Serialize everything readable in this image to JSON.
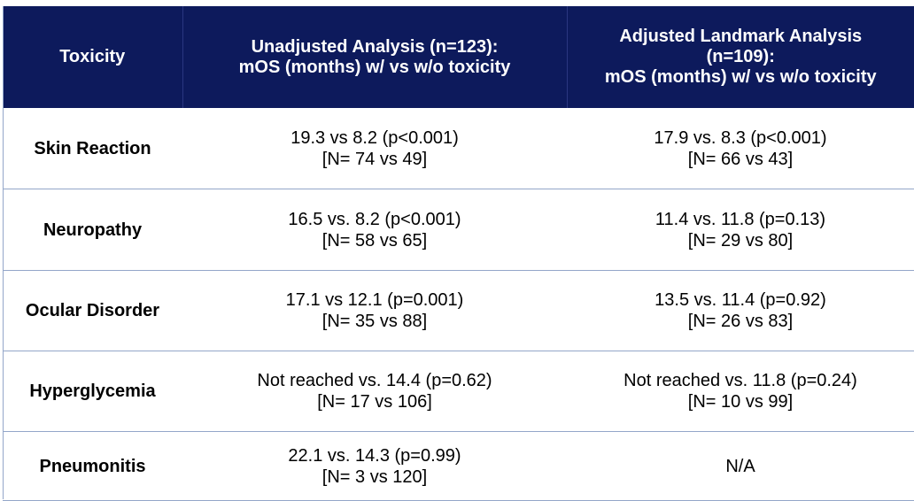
{
  "header": {
    "col1": "Toxicity",
    "col2_line1": "Unadjusted Analysis (n=123):",
    "col2_line2": "mOS (months) w/ vs w/o toxicity",
    "col3_line1": "Adjusted Landmark Analysis",
    "col3_line2": "(n=109):",
    "col3_line3": "mOS (months) w/ vs w/o toxicity"
  },
  "rows": [
    {
      "toxicity": "Skin Reaction",
      "unadj_line1": "19.3 vs 8.2 (p<0.001)",
      "unadj_line2": "[N= 74 vs 49]",
      "adj_line1": "17.9 vs. 8.3 (p<0.001)",
      "adj_line2": "[N= 66 vs 43]"
    },
    {
      "toxicity": "Neuropathy",
      "unadj_line1": "16.5 vs. 8.2 (p<0.001)",
      "unadj_line2": "[N= 58 vs 65]",
      "adj_line1": "11.4 vs. 11.8 (p=0.13)",
      "adj_line2": "[N= 29 vs 80]"
    },
    {
      "toxicity": "Ocular Disorder",
      "unadj_line1": "17.1 vs 12.1 (p=0.001)",
      "unadj_line2": "[N= 35 vs 88]",
      "adj_line1": "13.5 vs. 11.4 (p=0.92)",
      "adj_line2": "[N= 26 vs 83]"
    },
    {
      "toxicity": "Hyperglycemia",
      "unadj_line1": "Not reached vs. 14.4 (p=0.62)",
      "unadj_line2": "[N= 17 vs 106]",
      "adj_line1": "Not reached vs. 11.8 (p=0.24)",
      "adj_line2": "[N= 10 vs 99]"
    },
    {
      "toxicity": "Pneumonitis",
      "unadj_line1": "22.1 vs. 14.3 (p=0.99)",
      "unadj_line2": "[N= 3 vs 120]",
      "adj_line1": "N/A",
      "adj_line2": ""
    }
  ],
  "colors": {
    "header_bg": "#0d1a5c",
    "header_text": "#ffffff",
    "row_divider": "#93a6c9"
  }
}
